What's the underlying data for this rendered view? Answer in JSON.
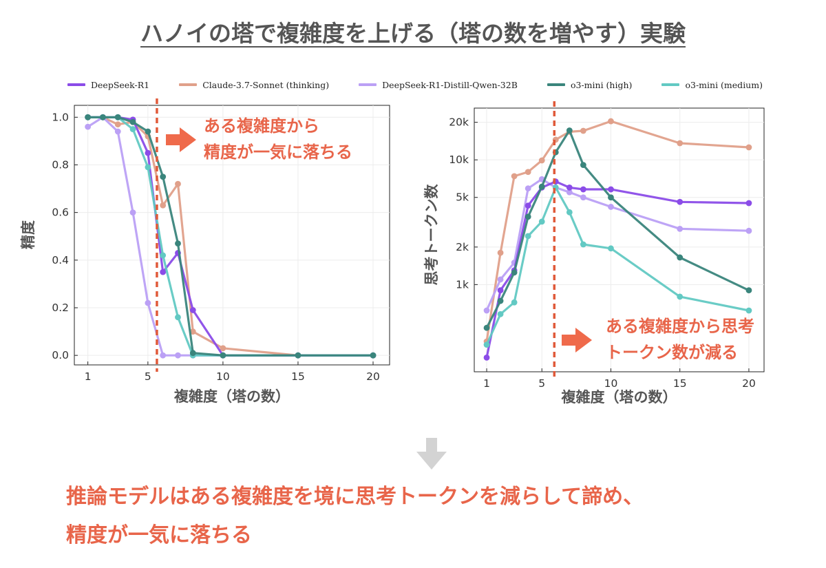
{
  "title": "ハノイの塔で複雑度を上げる（塔の数を増やす）実験",
  "colors": {
    "annotation": "#e8654a",
    "threshold_line": "#e05a3a",
    "arrow": "#ef6a4b",
    "down_arrow": "#d3d3d3"
  },
  "legend": [
    {
      "name": "DeepSeek-R1",
      "color": "#8b4ce8"
    },
    {
      "name": "Claude-3.7-Sonnet (thinking)",
      "color": "#e0a08a"
    },
    {
      "name": "DeepSeek-R1-Distill-Qwen-32B",
      "color": "#bba0f5"
    },
    {
      "name": "o3-mini (high)",
      "color": "#3a857c"
    },
    {
      "name": "o3-mini (medium)",
      "color": "#62c9c3"
    }
  ],
  "annotations": {
    "left": [
      "ある複雑度から",
      "精度が一気に落ちる"
    ],
    "right": [
      "ある複雑度から思考",
      "トークン数が減る"
    ]
  },
  "icons": {
    "right_arrow": "arrow-right-icon",
    "down_arrow": "arrow-down-icon"
  },
  "conclusion": [
    "推論モデルはある複雑度を境に思考トークンを減らして諦め、",
    "精度が一気に落ちる"
  ],
  "chart_data": [
    {
      "type": "line",
      "xlabel": "複雑度（塔の数）",
      "ylabel": "精度",
      "x_ticks": [
        "1",
        "5",
        "10",
        "15",
        "20"
      ],
      "y_ticks": [
        "0.0",
        "0.2",
        "0.4",
        "0.6",
        "0.8",
        "1.0"
      ],
      "xlim": [
        0.1,
        21.1
      ],
      "ylim": [
        -0.04,
        1.05
      ],
      "grid": true,
      "threshold_x": 5.6,
      "series": [
        {
          "name": "Claude-3.7-Sonnet (thinking)",
          "color": "#e0a08a",
          "points": [
            [
              1,
              1.0
            ],
            [
              2,
              1.0
            ],
            [
              3,
              0.97
            ],
            [
              4,
              0.98
            ],
            [
              5,
              0.92
            ],
            [
              6,
              0.63
            ],
            [
              7,
              0.72
            ],
            [
              8,
              0.1
            ],
            [
              10,
              0.03
            ],
            [
              15,
              0.0
            ],
            [
              20,
              0.0
            ]
          ]
        },
        {
          "name": "DeepSeek-R1-Distill-Qwen-32B",
          "color": "#bba0f5",
          "points": [
            [
              1,
              0.96
            ],
            [
              2,
              1.0
            ],
            [
              3,
              0.94
            ],
            [
              4,
              0.6
            ],
            [
              5,
              0.22
            ],
            [
              6,
              0.0
            ],
            [
              7,
              0.0
            ],
            [
              8,
              0.0
            ],
            [
              10,
              0.0
            ],
            [
              15,
              0.0
            ],
            [
              20,
              0.0
            ]
          ]
        },
        {
          "name": "DeepSeek-R1",
          "color": "#8b4ce8",
          "points": [
            [
              1,
              1.0
            ],
            [
              2,
              1.0
            ],
            [
              3,
              1.0
            ],
            [
              4,
              0.99
            ],
            [
              5,
              0.85
            ],
            [
              6,
              0.35
            ],
            [
              7,
              0.43
            ],
            [
              8,
              0.19
            ],
            [
              10,
              0.0
            ],
            [
              15,
              0.0
            ],
            [
              20,
              0.0
            ]
          ]
        },
        {
          "name": "o3-mini (medium)",
          "color": "#62c9c3",
          "points": [
            [
              1,
              1.0
            ],
            [
              2,
              1.0
            ],
            [
              3,
              1.0
            ],
            [
              4,
              0.95
            ],
            [
              5,
              0.79
            ],
            [
              6,
              0.42
            ],
            [
              7,
              0.16
            ],
            [
              8,
              0.0
            ],
            [
              10,
              0.0
            ],
            [
              15,
              0.0
            ],
            [
              20,
              0.0
            ]
          ]
        },
        {
          "name": "o3-mini (high)",
          "color": "#3a857c",
          "points": [
            [
              1,
              1.0
            ],
            [
              2,
              1.0
            ],
            [
              3,
              1.0
            ],
            [
              4,
              0.98
            ],
            [
              5,
              0.94
            ],
            [
              6,
              0.75
            ],
            [
              7,
              0.47
            ],
            [
              8,
              0.01
            ],
            [
              10,
              0.0
            ],
            [
              15,
              0.0
            ],
            [
              20,
              0.0
            ]
          ]
        }
      ]
    },
    {
      "type": "line",
      "xlabel": "複雑度（塔の数）",
      "ylabel": "思考トークン数",
      "y_scale": "log",
      "x_ticks": [
        "1",
        "5",
        "10",
        "15",
        "20"
      ],
      "y_ticks": [
        "1k",
        "2k",
        "5k",
        "10k",
        "20k"
      ],
      "y_tick_values": [
        1000,
        2000,
        5000,
        10000,
        20000
      ],
      "xlim": [
        0.1,
        21.1
      ],
      "ylim": [
        200,
        26000
      ],
      "grid": true,
      "threshold_x": 5.9,
      "series": [
        {
          "name": "Claude-3.7-Sonnet (thinking)",
          "color": "#e0a08a",
          "points": [
            [
              1,
              350
            ],
            [
              2,
              1800
            ],
            [
              3,
              7400
            ],
            [
              4,
              8000
            ],
            [
              5,
              9900
            ],
            [
              6,
              14500
            ],
            [
              7,
              16800
            ],
            [
              8,
              17100
            ],
            [
              10,
              20400
            ],
            [
              15,
              13600
            ],
            [
              20,
              12600
            ]
          ]
        },
        {
          "name": "DeepSeek-R1-Distill-Qwen-32B",
          "color": "#bba0f5",
          "points": [
            [
              1,
              620
            ],
            [
              2,
              1100
            ],
            [
              3,
              1500
            ],
            [
              4,
              5900
            ],
            [
              5,
              7000
            ],
            [
              6,
              6000
            ],
            [
              7,
              5500
            ],
            [
              8,
              5000
            ],
            [
              10,
              4200
            ],
            [
              15,
              2800
            ],
            [
              20,
              2700
            ]
          ]
        },
        {
          "name": "DeepSeek-R1",
          "color": "#8b4ce8",
          "points": [
            [
              1,
              260
            ],
            [
              2,
              900
            ],
            [
              3,
              1300
            ],
            [
              4,
              4300
            ],
            [
              5,
              6000
            ],
            [
              6,
              6700
            ],
            [
              7,
              6000
            ],
            [
              8,
              5800
            ],
            [
              10,
              5800
            ],
            [
              15,
              4600
            ],
            [
              20,
              4500
            ]
          ]
        },
        {
          "name": "o3-mini (medium)",
          "color": "#62c9c3",
          "points": [
            [
              1,
              330
            ],
            [
              2,
              580
            ],
            [
              3,
              720
            ],
            [
              4,
              2450
            ],
            [
              5,
              3200
            ],
            [
              6,
              6000
            ],
            [
              7,
              3800
            ],
            [
              8,
              2100
            ],
            [
              10,
              1950
            ],
            [
              15,
              800
            ],
            [
              20,
              620
            ]
          ]
        },
        {
          "name": "o3-mini (high)",
          "color": "#3a857c",
          "points": [
            [
              1,
              450
            ],
            [
              2,
              740
            ],
            [
              3,
              1250
            ],
            [
              4,
              3500
            ],
            [
              5,
              6100
            ],
            [
              6,
              11500
            ],
            [
              7,
              17200
            ],
            [
              8,
              9100
            ],
            [
              10,
              5000
            ],
            [
              15,
              1650
            ],
            [
              20,
              900
            ]
          ]
        }
      ]
    }
  ]
}
